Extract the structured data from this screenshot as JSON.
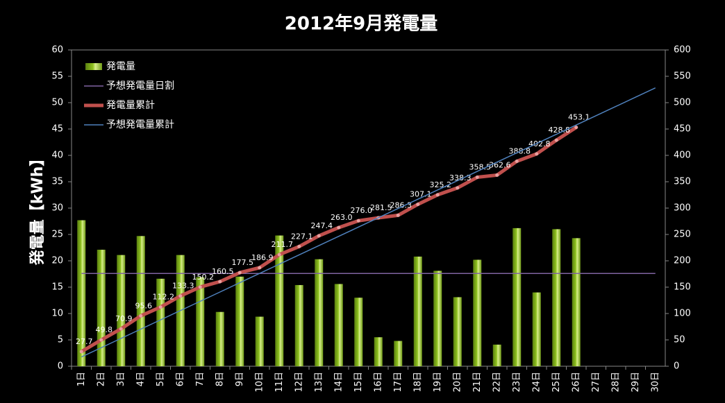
{
  "chart_data": {
    "type": "bar",
    "title": "2012年9月発電量",
    "y_label": "発電量【kWh】",
    "categories": [
      "1日",
      "2日",
      "3日",
      "4日",
      "5日",
      "6日",
      "7日",
      "8日",
      "9日",
      "10日",
      "11日",
      "12日",
      "13日",
      "14日",
      "15日",
      "16日",
      "17日",
      "18日",
      "19日",
      "20日",
      "21日",
      "22日",
      "23日",
      "24日",
      "25日",
      "26日",
      "27日",
      "28日",
      "29日",
      "30日"
    ],
    "ylim": [
      0,
      60
    ],
    "yticks": [
      0,
      5,
      10,
      15,
      20,
      25,
      30,
      35,
      40,
      45,
      50,
      55,
      60
    ],
    "y2lim": [
      0,
      600
    ],
    "y2ticks": [
      0,
      50,
      100,
      150,
      200,
      250,
      300,
      350,
      400,
      450,
      500,
      550,
      600
    ],
    "legend": "top-left",
    "series": [
      {
        "name": "発電量",
        "type": "bar",
        "color": "#8fc21f",
        "values": [
          27.7,
          22.1,
          21.1,
          24.7,
          16.6,
          21.1,
          16.9,
          10.3,
          17.0,
          9.4,
          24.8,
          15.4,
          20.3,
          15.6,
          13.0,
          5.5,
          4.8,
          20.8,
          18.1,
          13.1,
          20.2,
          4.1,
          26.2,
          14.0,
          26.0,
          24.3,
          null,
          null,
          null,
          null
        ]
      },
      {
        "name": "予想発電量日割",
        "type": "line",
        "color": "#8064a2",
        "values": [
          17.6,
          17.6,
          17.6,
          17.6,
          17.6,
          17.6,
          17.6,
          17.6,
          17.6,
          17.6,
          17.6,
          17.6,
          17.6,
          17.6,
          17.6,
          17.6,
          17.6,
          17.6,
          17.6,
          17.6,
          17.6,
          17.6,
          17.6,
          17.6,
          17.6,
          17.6,
          17.6,
          17.6,
          17.6,
          17.6
        ]
      },
      {
        "name": "発電量累計",
        "type": "line",
        "axis": "y2",
        "color": "#c0504d",
        "values": [
          27.7,
          49.8,
          70.9,
          95.6,
          112.2,
          133.3,
          150.2,
          160.5,
          177.5,
          186.9,
          211.7,
          227.1,
          247.4,
          263.0,
          276.0,
          281.5,
          286.3,
          307.1,
          325.2,
          338.3,
          358.5,
          362.6,
          388.8,
          402.8,
          428.8,
          453.1,
          null,
          null,
          null,
          null
        ],
        "value_labels": [
          "27.7",
          "49.8",
          "70.9",
          "95.6",
          "112.2",
          "133.3",
          "150.2",
          "160.5",
          "177.5",
          "186.9",
          "211.7",
          "227.1",
          "247.4",
          "263.0",
          "276.0",
          "281.5",
          "286.3",
          "307.1",
          "325.2",
          "338.3",
          "358.5",
          "362.6",
          "388.8",
          "402.8",
          "428.8",
          "453.1",
          null,
          null,
          null,
          null
        ]
      },
      {
        "name": "予想発電量累計",
        "type": "line",
        "axis": "y2",
        "color": "#4f81bd",
        "values": [
          17.6,
          35.2,
          52.8,
          70.4,
          88.0,
          105.6,
          123.2,
          140.8,
          158.4,
          176.0,
          193.6,
          211.2,
          228.8,
          246.4,
          264.0,
          281.6,
          299.2,
          316.8,
          334.4,
          352.0,
          369.6,
          387.2,
          404.8,
          422.4,
          440.0,
          457.6,
          475.2,
          492.8,
          510.4,
          528.0
        ]
      }
    ]
  }
}
